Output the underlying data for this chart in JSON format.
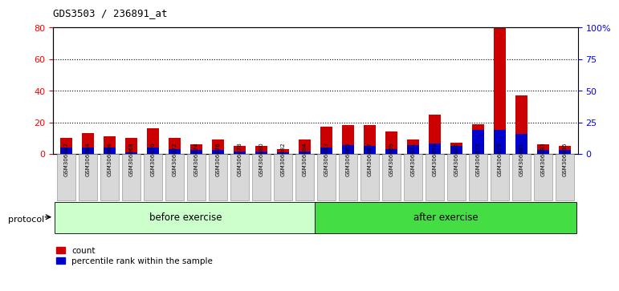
{
  "title": "GDS3503 / 236891_at",
  "categories": [
    "GSM306062",
    "GSM306064",
    "GSM306066",
    "GSM306068",
    "GSM306070",
    "GSM306072",
    "GSM306074",
    "GSM306076",
    "GSM306078",
    "GSM306080",
    "GSM306082",
    "GSM306084",
    "GSM306063",
    "GSM306065",
    "GSM306067",
    "GSM306069",
    "GSM306071",
    "GSM306073",
    "GSM306075",
    "GSM306077",
    "GSM306079",
    "GSM306081",
    "GSM306083",
    "GSM306085"
  ],
  "count_values": [
    10,
    13,
    11,
    10,
    16,
    10,
    6,
    9,
    5,
    5,
    3,
    9,
    17,
    18,
    18,
    14,
    9,
    25,
    7,
    19,
    80,
    37,
    6,
    5
  ],
  "percentile_values": [
    5,
    5,
    5,
    1,
    5,
    4,
    3,
    3,
    2,
    2,
    1,
    2,
    5,
    7,
    6,
    4,
    7,
    8,
    6,
    19,
    19,
    16,
    3,
    3
  ],
  "before_count": 12,
  "after_count": 12,
  "before_label": "before exercise",
  "after_label": "after exercise",
  "protocol_label": "protocol",
  "count_color": "#cc0000",
  "percentile_color": "#0000cc",
  "before_bg": "#ccffcc",
  "after_bg": "#44dd44",
  "ylim_left": [
    0,
    80
  ],
  "ylim_right": [
    0,
    100
  ],
  "yticks_left": [
    0,
    20,
    40,
    60,
    80
  ],
  "yticks_right": [
    0,
    25,
    50,
    75,
    100
  ],
  "ytick_labels_right": [
    "0",
    "25",
    "50",
    "75",
    "100%"
  ],
  "bg_color": "#ffffff"
}
